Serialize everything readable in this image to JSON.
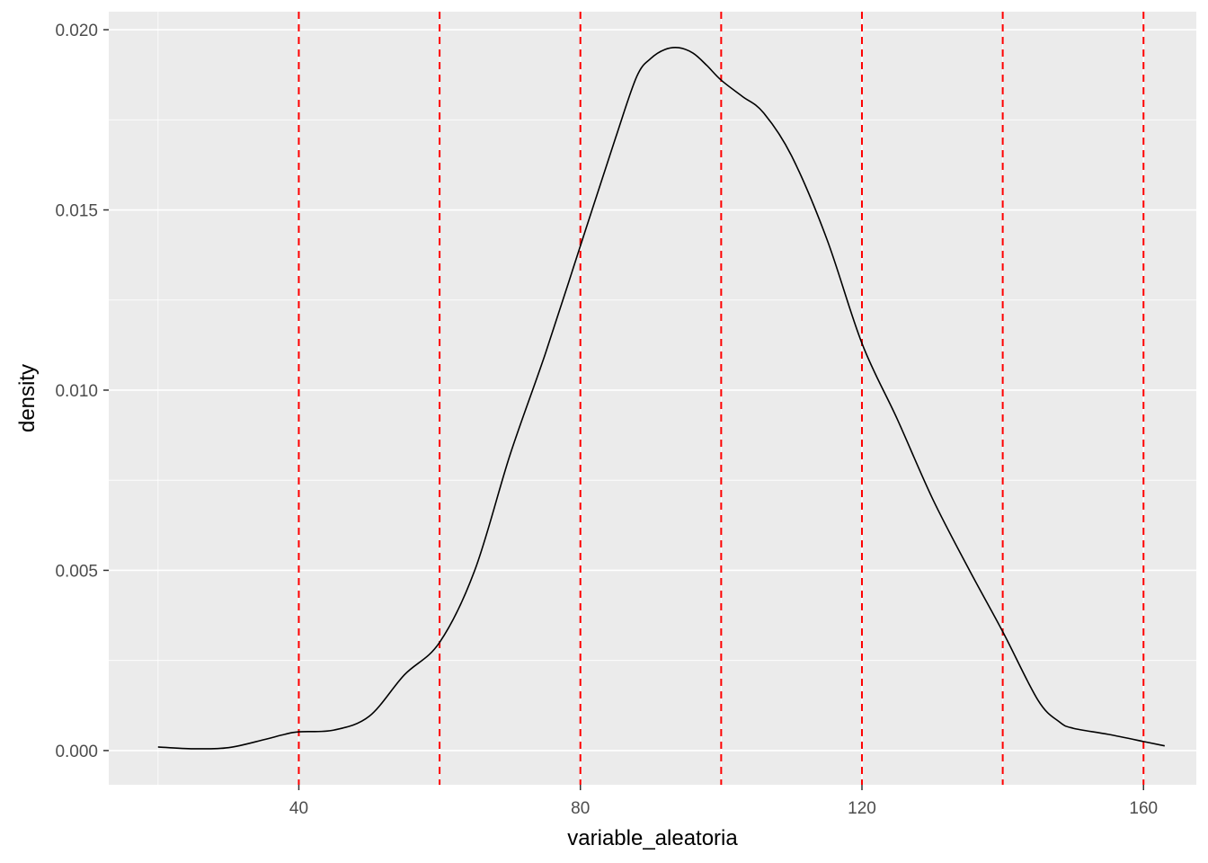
{
  "chart_data": {
    "type": "line",
    "title": "",
    "xlabel": "variable_aleatoria",
    "ylabel": "density",
    "xlim": [
      13,
      167.5
    ],
    "ylim": [
      -0.00095,
      0.0205
    ],
    "x_ticks": [
      40,
      80,
      120,
      160
    ],
    "x_tick_labels": [
      "40",
      "80",
      "120",
      "160"
    ],
    "y_ticks": [
      0.0,
      0.005,
      0.01,
      0.015,
      0.02
    ],
    "y_tick_labels": [
      "0.000",
      "0.005",
      "0.010",
      "0.015",
      "0.020"
    ],
    "grid": true,
    "legend": "none",
    "background_color": "#EBEBEB",
    "grid_color": "#FFFFFF",
    "series": [
      {
        "color": "#000000",
        "x": [
          20,
          25,
          30,
          35,
          38,
          40,
          45,
          50,
          55,
          60,
          65,
          70,
          75,
          80,
          85,
          88,
          90,
          92,
          94,
          96,
          98,
          100,
          103,
          106,
          110,
          115,
          120,
          125,
          130,
          135,
          140,
          145,
          148,
          150,
          155,
          160,
          163
        ],
        "y": [
          0.0001,
          5e-05,
          8e-05,
          0.0003,
          0.00045,
          0.00052,
          0.00057,
          0.00095,
          0.0021,
          0.003,
          0.005,
          0.0082,
          0.011,
          0.014,
          0.017,
          0.0187,
          0.0192,
          0.01945,
          0.0195,
          0.01935,
          0.019,
          0.0186,
          0.01815,
          0.0177,
          0.0165,
          0.0142,
          0.0113,
          0.0092,
          0.007,
          0.0051,
          0.0033,
          0.0014,
          0.0008,
          0.00062,
          0.00045,
          0.00025,
          0.00013
        ]
      }
    ],
    "vlines": {
      "color": "#FF0000",
      "style": "dashed",
      "x": [
        40,
        60,
        80,
        100,
        120,
        140,
        160
      ]
    }
  }
}
